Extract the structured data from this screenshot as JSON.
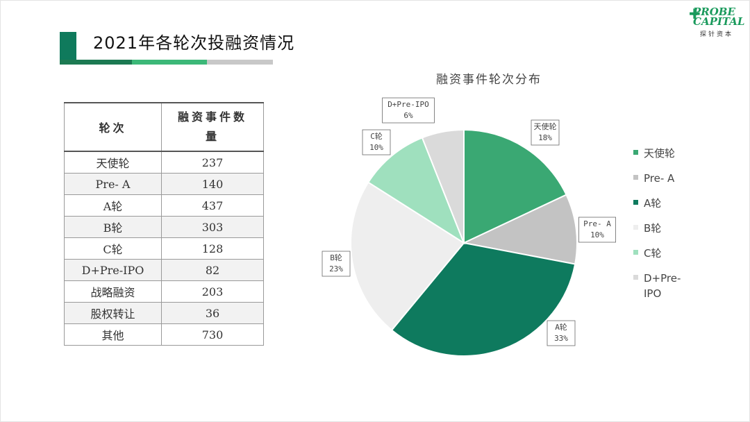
{
  "page": {
    "title": "2021年各轮次投融资情况"
  },
  "logo": {
    "main_line1": "PROBE",
    "main_line2": "CAPITAL",
    "sub": "探针资本"
  },
  "table": {
    "headers": [
      "轮次",
      "融资事件数量"
    ],
    "rows": [
      {
        "round": "天使轮",
        "count": "237"
      },
      {
        "round": "Pre- A",
        "count": "140"
      },
      {
        "round": "A轮",
        "count": "437"
      },
      {
        "round": "B轮",
        "count": "303"
      },
      {
        "round": "C轮",
        "count": "128"
      },
      {
        "round": "D+Pre-IPO",
        "count": "82"
      },
      {
        "round": "战略融资",
        "count": "203"
      },
      {
        "round": "股权转让",
        "count": "36"
      },
      {
        "round": "其他",
        "count": "730"
      }
    ]
  },
  "chart_data": {
    "type": "pie",
    "title": "融资事件轮次分布",
    "legend_position": "right",
    "slices": [
      {
        "name": "天使轮",
        "value": 18,
        "label": "18%",
        "color": "#3aa873"
      },
      {
        "name": "Pre- A",
        "value": 10,
        "label": "10%",
        "color": "#c3c3c3"
      },
      {
        "name": "A轮",
        "value": 33,
        "label": "33%",
        "color": "#0e7a5e"
      },
      {
        "name": "B轮",
        "value": 23,
        "label": "23%",
        "color": "#eeeeee"
      },
      {
        "name": "C轮",
        "value": 10,
        "label": "10%",
        "color": "#9fe0be"
      },
      {
        "name": "D+Pre-IPO",
        "value": 6,
        "label": "6%",
        "color": "#dadada"
      }
    ]
  }
}
